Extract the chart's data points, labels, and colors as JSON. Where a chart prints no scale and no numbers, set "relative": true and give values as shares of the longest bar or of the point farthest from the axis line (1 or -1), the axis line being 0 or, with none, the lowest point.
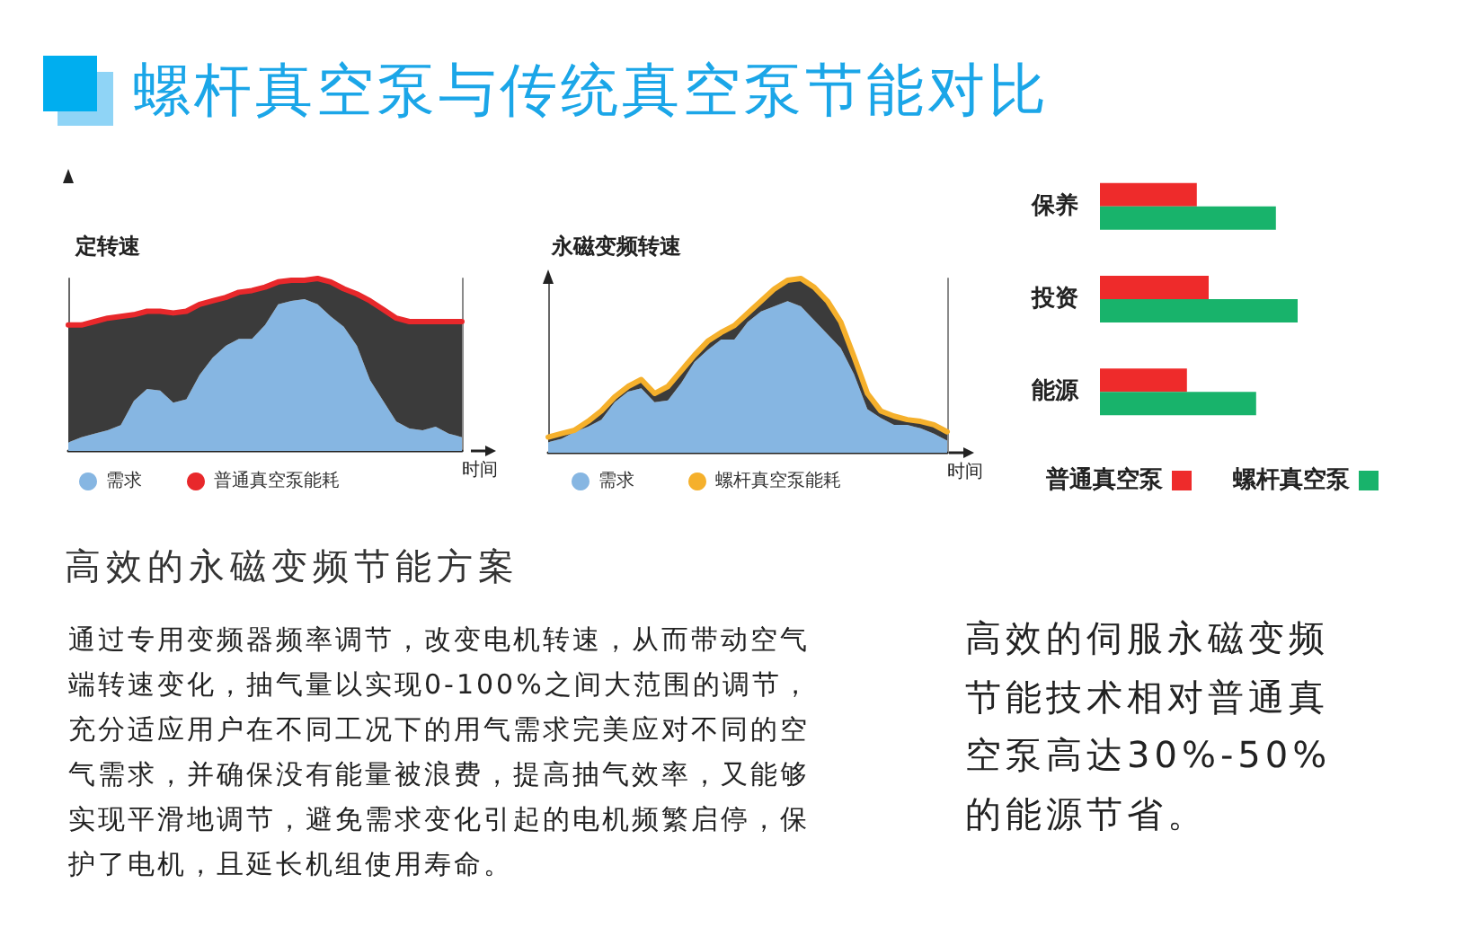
{
  "chart_data": [
    {
      "type": "other",
      "title": "螺杆真空泵与传统真空泵节能对比"
    },
    {
      "type": "area",
      "title": "定转速",
      "xlabel": "时间",
      "relative": true,
      "tick_labels": false,
      "legend": "bottom",
      "categories": [
        null,
        null,
        null,
        null,
        null,
        null,
        null,
        null,
        null,
        null,
        null,
        null,
        null,
        null,
        null,
        null,
        null,
        null,
        null,
        null,
        null,
        null,
        null,
        null,
        null,
        null,
        null,
        null,
        null,
        null,
        null
      ],
      "series": [
        {
          "name": "需求",
          "color": "#86b6e2",
          "values": [
            0.05,
            0.08,
            0.1,
            0.12,
            0.15,
            0.29,
            0.36,
            0.35,
            0.28,
            0.3,
            0.44,
            0.54,
            0.61,
            0.65,
            0.65,
            0.73,
            0.85,
            0.87,
            0.88,
            0.85,
            0.78,
            0.72,
            0.61,
            0.41,
            0.29,
            0.17,
            0.13,
            0.12,
            0.14,
            0.1,
            0.08
          ]
        },
        {
          "name": "普通真空泵能耗",
          "type": "line",
          "color": "#e8282b",
          "values": [
            0.73,
            0.73,
            0.75,
            0.77,
            0.78,
            0.79,
            0.81,
            0.81,
            0.8,
            0.81,
            0.85,
            0.87,
            0.89,
            0.92,
            0.93,
            0.95,
            0.98,
            0.99,
            0.99,
            1,
            0.98,
            0.94,
            0.91,
            0.87,
            0.82,
            0.77,
            0.75,
            0.75,
            0.75,
            0.75,
            0.75
          ],
          "lower": [
            0.05,
            0.08,
            0.1,
            0.12,
            0.15,
            0.29,
            0.36,
            0.35,
            0.28,
            0.3,
            0.44,
            0.54,
            0.61,
            0.65,
            0.65,
            0.73,
            0.85,
            0.87,
            0.88,
            0.85,
            0.78,
            0.72,
            0.61,
            0.41,
            0.29,
            0.17,
            0.13,
            0.12,
            0.14,
            0.1,
            0.08
          ],
          "upper": [
            0.73,
            0.73,
            0.75,
            0.77,
            0.78,
            0.79,
            0.81,
            0.81,
            0.8,
            0.81,
            0.85,
            0.87,
            0.89,
            0.92,
            0.93,
            0.95,
            0.98,
            0.99,
            0.99,
            1,
            0.98,
            0.94,
            0.91,
            0.87,
            0.82,
            0.77,
            0.75,
            0.75,
            0.75,
            0.75,
            0.75
          ]
        }
      ]
    },
    {
      "type": "area",
      "title": "永磁变频转速",
      "xlabel": "时间",
      "relative": true,
      "tick_labels": false,
      "legend": "bottom",
      "categories": [
        null,
        null,
        null,
        null,
        null,
        null,
        null,
        null,
        null,
        null,
        null,
        null,
        null,
        null,
        null,
        null,
        null,
        null,
        null,
        null,
        null,
        null,
        null,
        null,
        null,
        null,
        null,
        null,
        null,
        null,
        null
      ],
      "series": [
        {
          "name": "需求",
          "color": "#86b6e2",
          "values": [
            0.06,
            0.08,
            0.12,
            0.15,
            0.19,
            0.29,
            0.35,
            0.37,
            0.29,
            0.3,
            0.4,
            0.52,
            0.59,
            0.65,
            0.65,
            0.75,
            0.81,
            0.84,
            0.87,
            0.84,
            0.76,
            0.68,
            0.6,
            0.45,
            0.25,
            0.2,
            0.16,
            0.16,
            0.14,
            0.11,
            0.07
          ]
        },
        {
          "name": "螺杆真空泵能耗",
          "type": "line",
          "color": "#f5b02c",
          "values": [
            0.09,
            0.11,
            0.13,
            0.18,
            0.24,
            0.32,
            0.38,
            0.42,
            0.34,
            0.38,
            0.47,
            0.56,
            0.64,
            0.69,
            0.73,
            0.8,
            0.87,
            0.94,
            0.99,
            1,
            0.95,
            0.87,
            0.75,
            0.55,
            0.34,
            0.24,
            0.21,
            0.19,
            0.18,
            0.16,
            0.12
          ],
          "lower": [
            0.06,
            0.08,
            0.12,
            0.15,
            0.19,
            0.29,
            0.35,
            0.37,
            0.29,
            0.3,
            0.4,
            0.52,
            0.59,
            0.65,
            0.65,
            0.75,
            0.81,
            0.84,
            0.87,
            0.84,
            0.76,
            0.68,
            0.6,
            0.45,
            0.25,
            0.2,
            0.16,
            0.16,
            0.14,
            0.11,
            0.07
          ],
          "upper": [
            0.09,
            0.11,
            0.13,
            0.18,
            0.24,
            0.32,
            0.38,
            0.42,
            0.34,
            0.38,
            0.47,
            0.56,
            0.64,
            0.69,
            0.73,
            0.8,
            0.87,
            0.94,
            0.99,
            1,
            0.95,
            0.87,
            0.75,
            0.55,
            0.34,
            0.24,
            0.21,
            0.19,
            0.18,
            0.16,
            0.12
          ]
        }
      ]
    },
    {
      "type": "bar",
      "orientation": "horizontal",
      "relative": true,
      "tick_labels": "y",
      "legend": "bottom",
      "categories": [
        "保养",
        "投资",
        "能源"
      ],
      "series": [
        {
          "name": "普通真空泵",
          "color": "#ee2b2b",
          "values": [
            0.49,
            0.55,
            0.44
          ]
        },
        {
          "name": "螺杆真空泵",
          "color": "#18b36b",
          "values": [
            0.89,
            1,
            0.79
          ]
        }
      ]
    },
    {
      "type": "other",
      "title": "高效的永磁变频节能方案",
      "annotations": [
        "通过专用变频器频率调节，改变电机转速，从而带动空气端转速变化，抽气量以实现0-100%之间大范围的调节，充分适应用户在不同工况下的用气需求完美应对不同的空气需求，并确保没有能量被浪费，提高抽气效率，又能够实现平滑地调节，避免需求变化引起的电机频繁启停，保护了电机，且延长机组使用寿命。",
        "高效的伺服永磁变频节能技术相对普通真空泵高达30%-50%的能源节省。"
      ]
    }
  ]
}
